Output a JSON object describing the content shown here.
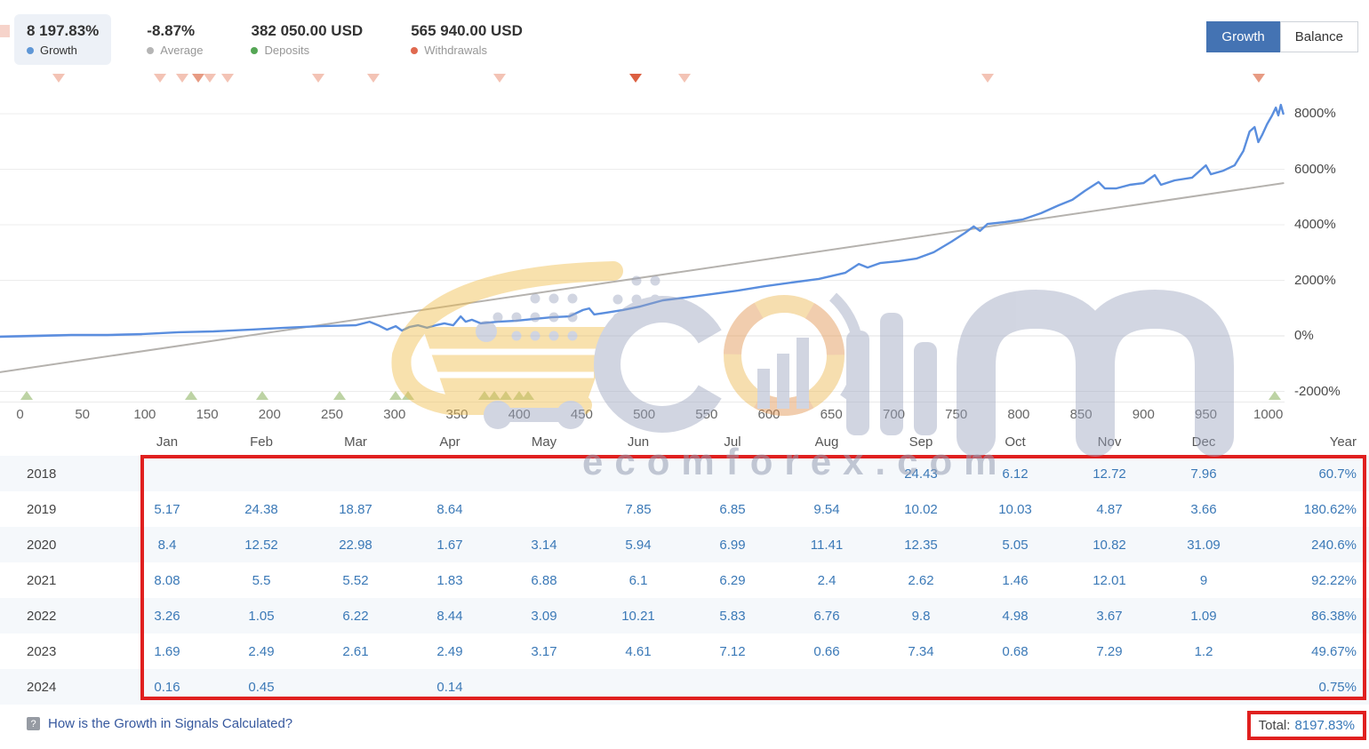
{
  "header": {
    "stats": [
      {
        "value": "8 197.83%",
        "label": "Growth",
        "dot_color": "#5f97d6",
        "active": true
      },
      {
        "value": "-8.87%",
        "label": "Average",
        "dot_color": "#b5b5b5",
        "active": false
      },
      {
        "value": "382 050.00 USD",
        "label": "Deposits",
        "dot_color": "#55a655",
        "active": false
      },
      {
        "value": "565 940.00 USD",
        "label": "Withdrawals",
        "dot_color": "#e0694f",
        "active": false
      }
    ],
    "view_toggle": {
      "options": [
        "Growth",
        "Balance"
      ],
      "selected": "Growth",
      "active_color": "#4473b3"
    }
  },
  "chart_data": {
    "type": "line",
    "title": "",
    "xlabel": "",
    "ylabel": "",
    "xlim": [
      -16,
      1013
    ],
    "ylim": [
      -2464,
      9216
    ],
    "grid": true,
    "x_ticks": [
      0,
      50,
      100,
      150,
      200,
      250,
      300,
      350,
      400,
      450,
      500,
      550,
      600,
      650,
      700,
      750,
      800,
      850,
      900,
      950,
      1000
    ],
    "y_ticks": [
      {
        "value": 8000,
        "label": "8000%"
      },
      {
        "value": 6000,
        "label": "6000%"
      },
      {
        "value": 4000,
        "label": "4000%"
      },
      {
        "value": 2000,
        "label": "2000%"
      },
      {
        "value": 0,
        "label": "0%"
      },
      {
        "value": -2000,
        "label": "-2000%"
      }
    ],
    "series": [
      {
        "name": "Growth",
        "color": "#5a8ede",
        "width": 2.4,
        "points": [
          [
            -16,
            -30
          ],
          [
            13,
            0
          ],
          [
            41,
            30
          ],
          [
            70,
            30
          ],
          [
            97,
            60
          ],
          [
            127,
            130
          ],
          [
            155,
            160
          ],
          [
            184,
            220
          ],
          [
            212,
            290
          ],
          [
            241,
            350
          ],
          [
            269,
            380
          ],
          [
            280,
            510
          ],
          [
            287,
            380
          ],
          [
            294,
            220
          ],
          [
            301,
            350
          ],
          [
            306,
            190
          ],
          [
            312,
            320
          ],
          [
            319,
            380
          ],
          [
            326,
            290
          ],
          [
            333,
            380
          ],
          [
            340,
            450
          ],
          [
            347,
            380
          ],
          [
            353,
            700
          ],
          [
            357,
            510
          ],
          [
            362,
            580
          ],
          [
            369,
            450
          ],
          [
            383,
            510
          ],
          [
            397,
            540
          ],
          [
            412,
            610
          ],
          [
            426,
            670
          ],
          [
            440,
            700
          ],
          [
            451,
            930
          ],
          [
            456,
            990
          ],
          [
            460,
            770
          ],
          [
            469,
            830
          ],
          [
            483,
            930
          ],
          [
            497,
            1060
          ],
          [
            515,
            1280
          ],
          [
            533,
            1380
          ],
          [
            554,
            1500
          ],
          [
            575,
            1630
          ],
          [
            597,
            1790
          ],
          [
            618,
            1920
          ],
          [
            640,
            2050
          ],
          [
            661,
            2270
          ],
          [
            672,
            2590
          ],
          [
            679,
            2460
          ],
          [
            689,
            2620
          ],
          [
            704,
            2690
          ],
          [
            718,
            2780
          ],
          [
            732,
            3010
          ],
          [
            746,
            3390
          ],
          [
            757,
            3710
          ],
          [
            764,
            3940
          ],
          [
            769,
            3780
          ],
          [
            775,
            4030
          ],
          [
            789,
            4100
          ],
          [
            803,
            4190
          ],
          [
            818,
            4420
          ],
          [
            832,
            4700
          ],
          [
            843,
            4900
          ],
          [
            853,
            5220
          ],
          [
            864,
            5540
          ],
          [
            869,
            5310
          ],
          [
            878,
            5310
          ],
          [
            889,
            5440
          ],
          [
            900,
            5500
          ],
          [
            909,
            5790
          ],
          [
            914,
            5440
          ],
          [
            925,
            5600
          ],
          [
            939,
            5700
          ],
          [
            950,
            6140
          ],
          [
            954,
            5820
          ],
          [
            964,
            5950
          ],
          [
            973,
            6140
          ],
          [
            980,
            6660
          ],
          [
            985,
            7360
          ],
          [
            989,
            7520
          ],
          [
            992,
            6980
          ],
          [
            995,
            7230
          ],
          [
            999,
            7620
          ],
          [
            1003,
            7940
          ],
          [
            1006,
            8220
          ],
          [
            1008,
            7940
          ],
          [
            1010,
            8320
          ],
          [
            1012,
            8000
          ]
        ]
      },
      {
        "name": "Growth (early faded segment)",
        "color": "#c7cdf2",
        "width": 3,
        "points": [
          [
            -16,
            -30
          ],
          [
            13,
            0
          ],
          [
            41,
            30
          ],
          [
            70,
            30
          ],
          [
            97,
            60
          ]
        ]
      },
      {
        "name": "Trend",
        "color": "#b5b2ae",
        "width": 2,
        "points": [
          [
            -16,
            -1310
          ],
          [
            1012,
            5500
          ]
        ]
      }
    ],
    "withdrawal_markers": {
      "shades": {
        "light": "#f3c3b5",
        "medium": "#e79b83",
        "dark": "#dc5f41"
      },
      "items": [
        {
          "trade": 31,
          "shade": "light"
        },
        {
          "trade": 112,
          "shade": "light"
        },
        {
          "trade": 130,
          "shade": "light"
        },
        {
          "trade": 143,
          "shade": "medium"
        },
        {
          "trade": 152,
          "shade": "light"
        },
        {
          "trade": 166,
          "shade": "light"
        },
        {
          "trade": 239,
          "shade": "light"
        },
        {
          "trade": 283,
          "shade": "light"
        },
        {
          "trade": 384,
          "shade": "light"
        },
        {
          "trade": 493,
          "shade": "dark"
        },
        {
          "trade": 532,
          "shade": "light"
        },
        {
          "trade": 775,
          "shade": "light"
        },
        {
          "trade": 992,
          "shade": "medium"
        }
      ]
    },
    "deposit_markers": {
      "color": "#bdd3a4",
      "trades": [
        5,
        137,
        194,
        256,
        301,
        311,
        372,
        380,
        389,
        400,
        407,
        1005
      ]
    }
  },
  "table": {
    "month_headers": [
      "Jan",
      "Feb",
      "Mar",
      "Apr",
      "May",
      "Jun",
      "Jul",
      "Aug",
      "Sep",
      "Oct",
      "Nov",
      "Dec",
      "Year"
    ],
    "highlight_border_color": "#e0201f",
    "rows": [
      {
        "year": "2018",
        "months": [
          "",
          "",
          "",
          "",
          "",
          "",
          "",
          "",
          "24.43",
          "6.12",
          "12.72",
          "7.96"
        ],
        "year_total": "60.7%"
      },
      {
        "year": "2019",
        "months": [
          "5.17",
          "24.38",
          "18.87",
          "8.64",
          "",
          "7.85",
          "6.85",
          "9.54",
          "10.02",
          "10.03",
          "4.87",
          "3.66"
        ],
        "year_total": "180.62%"
      },
      {
        "year": "2020",
        "months": [
          "8.4",
          "12.52",
          "22.98",
          "1.67",
          "3.14",
          "5.94",
          "6.99",
          "11.41",
          "12.35",
          "5.05",
          "10.82",
          "31.09"
        ],
        "year_total": "240.6%"
      },
      {
        "year": "2021",
        "months": [
          "8.08",
          "5.5",
          "5.52",
          "1.83",
          "6.88",
          "6.1",
          "6.29",
          "2.4",
          "2.62",
          "1.46",
          "12.01",
          "9"
        ],
        "year_total": "92.22%"
      },
      {
        "year": "2022",
        "months": [
          "3.26",
          "1.05",
          "6.22",
          "8.44",
          "3.09",
          "10.21",
          "5.83",
          "6.76",
          "9.8",
          "4.98",
          "3.67",
          "1.09"
        ],
        "year_total": "86.38%"
      },
      {
        "year": "2023",
        "months": [
          "1.69",
          "2.49",
          "2.61",
          "2.49",
          "3.17",
          "4.61",
          "7.12",
          "0.66",
          "7.34",
          "0.68",
          "7.29",
          "1.2"
        ],
        "year_total": "49.67%"
      },
      {
        "year": "2024",
        "months": [
          "0.16",
          "0.45",
          "",
          "0.14",
          "",
          "",
          "",
          "",
          "",
          "",
          "",
          ""
        ],
        "year_total": "0.75%"
      }
    ]
  },
  "footer": {
    "help_link": "How is the Growth in Signals Calculated?",
    "total_label": "Total:",
    "total_value": "8197.83%"
  },
  "watermark": {
    "text": "ecomforex.com"
  }
}
